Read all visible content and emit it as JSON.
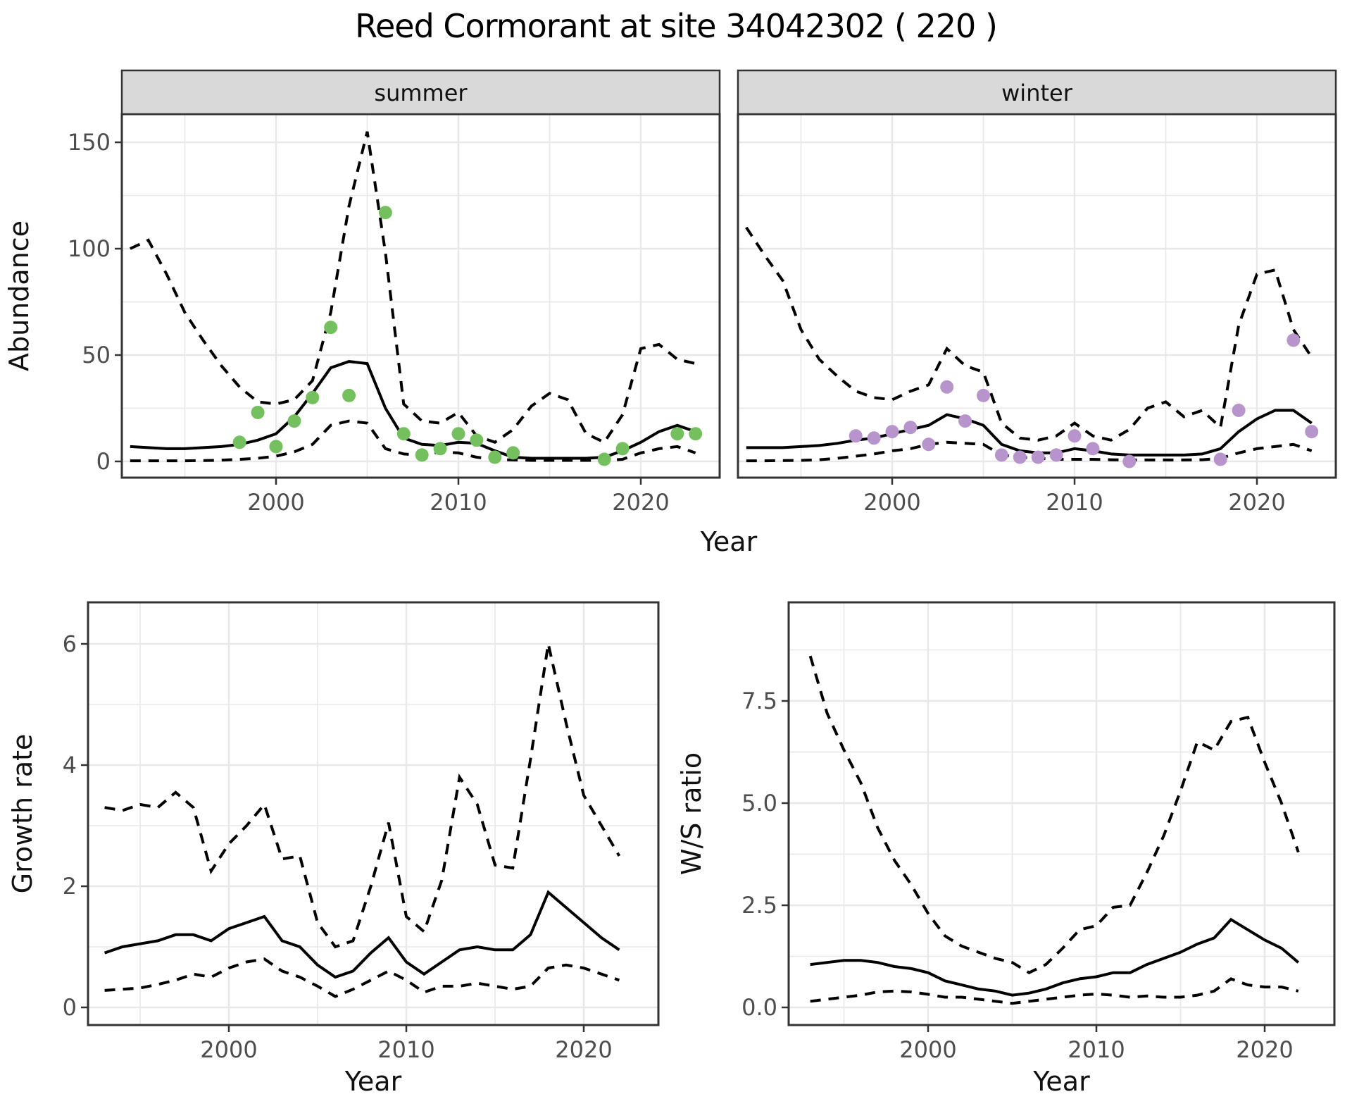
{
  "title": "Reed Cormorant at site 34042302 ( 220 )",
  "colors": {
    "summer_points": "#74c05e",
    "winter_points": "#b894cc",
    "grid": "#e8e8e8",
    "panel_border": "#333333",
    "strip_bg": "#d9d9d9",
    "axis_text": "#4d4d4d",
    "label_text": "#111111",
    "line": "#000000",
    "panel_bg": "#ffffff"
  },
  "chart_data": {
    "type": "line",
    "title": "Reed Cormorant at site 34042302 ( 220 )",
    "grid": "on",
    "legend": "none",
    "panels": [
      {
        "id": "abundance-summer",
        "facet": "summer",
        "xlabel": "Year",
        "ylabel": "Abundance",
        "xlim": [
          1991.5,
          2024.3
        ],
        "ylim": [
          -8,
          163
        ],
        "xticks": [
          2000,
          2010,
          2020
        ],
        "xticklabels": [
          "2000",
          "2010",
          "2020"
        ],
        "yticks": [
          0,
          50,
          100,
          150
        ],
        "yticklabels": [
          "0",
          "50",
          "100",
          "150"
        ],
        "x": [
          1992,
          1993,
          1994,
          1995,
          1996,
          1997,
          1998,
          1999,
          2000,
          2001,
          2002,
          2003,
          2004,
          2005,
          2006,
          2007,
          2008,
          2009,
          2010,
          2011,
          2012,
          2013,
          2014,
          2015,
          2016,
          2017,
          2018,
          2019,
          2020,
          2021,
          2022,
          2023
        ],
        "series": [
          {
            "name": "upper-ci",
            "style": "dashed",
            "values": [
              100,
              104,
              88,
              70,
              57,
              45,
              35,
              28,
              27,
              29,
              38,
              70,
              120,
              155,
              98,
              27,
              19,
              18,
              23,
              12,
              9,
              15,
              26,
              32,
              29,
              13,
              9,
              22,
              53,
              55,
              48,
              46
            ]
          },
          {
            "name": "mean-fit",
            "style": "solid",
            "values": [
              7,
              6.5,
              6,
              6,
              6.5,
              7,
              8,
              10,
              13,
              21,
              32,
              44,
              47,
              46,
              25,
              11,
              8,
              7.5,
              9,
              8.5,
              5,
              2,
              1.5,
              1.5,
              1.5,
              1.5,
              2,
              5,
              9,
              14,
              17,
              14
            ]
          },
          {
            "name": "lower-ci",
            "style": "dashed",
            "values": [
              0.3,
              0.3,
              0.3,
              0.3,
              0.4,
              0.6,
              1,
              1.5,
              2.5,
              4.5,
              8,
              17,
              19,
              18,
              6,
              3.5,
              3,
              4.5,
              4,
              2,
              1,
              0.7,
              0.5,
              0.5,
              0.5,
              0.5,
              0.5,
              1,
              4,
              6,
              7,
              4
            ]
          }
        ],
        "observations": {
          "name": "summer-counts",
          "color": "#74c05e",
          "x": [
            1998,
            1999,
            2000,
            2001,
            2002,
            2003,
            2004,
            2006,
            2007,
            2008,
            2009,
            2010,
            2011,
            2012,
            2013,
            2018,
            2019,
            2022,
            2023
          ],
          "y": [
            9,
            23,
            7,
            19,
            30,
            63,
            31,
            117,
            13,
            3,
            6,
            13,
            10,
            2,
            4,
            1,
            6,
            13,
            13
          ]
        }
      },
      {
        "id": "abundance-winter",
        "facet": "winter",
        "xlabel": "Year",
        "ylabel": "Abundance",
        "xlim": [
          1991.5,
          2024.3
        ],
        "ylim": [
          -8,
          163
        ],
        "xticks": [
          2000,
          2010,
          2020
        ],
        "xticklabels": [
          "2000",
          "2010",
          "2020"
        ],
        "yticks": [
          0,
          50,
          100,
          150
        ],
        "yticklabels": [
          "0",
          "50",
          "100",
          "150"
        ],
        "x": [
          1992,
          1993,
          1994,
          1995,
          1996,
          1997,
          1998,
          1999,
          2000,
          2001,
          2002,
          2003,
          2004,
          2005,
          2006,
          2007,
          2008,
          2009,
          2010,
          2011,
          2012,
          2013,
          2014,
          2015,
          2016,
          2017,
          2018,
          2019,
          2020,
          2021,
          2022,
          2023
        ],
        "series": [
          {
            "name": "upper-ci",
            "style": "dashed",
            "values": [
              110,
              97,
              85,
              62,
              48,
              40,
              33,
              30,
              29,
              33,
              36,
              53,
              45,
              42,
              18,
              11,
              10,
              12,
              18,
              12,
              10,
              15,
              25,
              28,
              21,
              24,
              16,
              64,
              88,
              90,
              62,
              49
            ]
          },
          {
            "name": "mean-fit",
            "style": "solid",
            "values": [
              6.5,
              6.5,
              6.5,
              7,
              7.5,
              8.5,
              10,
              11,
              13,
              15,
              17,
              22,
              20,
              17,
              8,
              5,
              4,
              4,
              6,
              5,
              3.5,
              3,
              3,
              3,
              3,
              3.5,
              6,
              14,
              20,
              24,
              24,
              18
            ]
          },
          {
            "name": "lower-ci",
            "style": "dashed",
            "values": [
              0.3,
              0.3,
              0.4,
              0.5,
              0.8,
              1.5,
              2.5,
              3.5,
              5,
              6,
              8,
              9,
              8.5,
              8,
              3,
              2,
              1.5,
              1,
              1,
              1,
              0.8,
              0.7,
              0.7,
              0.7,
              0.7,
              0.8,
              1.5,
              4,
              6,
              7,
              8,
              5
            ]
          }
        ],
        "observations": {
          "name": "winter-counts",
          "color": "#b894cc",
          "x": [
            1998,
            1999,
            2000,
            2001,
            2002,
            2003,
            2004,
            2005,
            2006,
            2007,
            2008,
            2009,
            2010,
            2011,
            2013,
            2018,
            2019,
            2022,
            2023
          ],
          "y": [
            12,
            11,
            14,
            16,
            8,
            35,
            19,
            31,
            3,
            2,
            2,
            3,
            12,
            6,
            0,
            1,
            24,
            57,
            14
          ]
        }
      },
      {
        "id": "growth-rate",
        "facet": null,
        "xlabel": "Year",
        "ylabel": "Growth rate",
        "xlim": [
          1992,
          2024.2
        ],
        "ylim": [
          -0.3,
          6.7
        ],
        "xticks": [
          2000,
          2010,
          2020
        ],
        "xticklabels": [
          "2000",
          "2010",
          "2020"
        ],
        "yticks": [
          0,
          2,
          4,
          6
        ],
        "yticklabels": [
          "0",
          "2",
          "4",
          "6"
        ],
        "x": [
          1993,
          1994,
          1995,
          1996,
          1997,
          1998,
          1999,
          2000,
          2001,
          2002,
          2003,
          2004,
          2005,
          2006,
          2007,
          2008,
          2009,
          2010,
          2011,
          2012,
          2013,
          2014,
          2015,
          2016,
          2017,
          2018,
          2019,
          2020,
          2021,
          2022
        ],
        "series": [
          {
            "name": "upper-ci",
            "style": "dashed",
            "values": [
              3.3,
              3.25,
              3.35,
              3.3,
              3.55,
              3.3,
              2.25,
              2.7,
              3.0,
              3.35,
              2.45,
              2.5,
              1.4,
              1.0,
              1.1,
              2.0,
              3.05,
              1.5,
              1.25,
              2.1,
              3.8,
              3.35,
              2.35,
              2.3,
              4.1,
              6.0,
              4.7,
              3.5,
              3.0,
              2.5
            ]
          },
          {
            "name": "mean-fit",
            "style": "solid",
            "values": [
              0.9,
              1.0,
              1.05,
              1.1,
              1.2,
              1.2,
              1.1,
              1.3,
              1.4,
              1.5,
              1.1,
              1.0,
              0.7,
              0.5,
              0.6,
              0.9,
              1.15,
              0.75,
              0.55,
              0.75,
              0.95,
              1.0,
              0.95,
              0.95,
              1.2,
              1.9,
              1.65,
              1.4,
              1.15,
              0.95
            ]
          },
          {
            "name": "lower-ci",
            "style": "dashed",
            "values": [
              0.28,
              0.3,
              0.32,
              0.38,
              0.45,
              0.55,
              0.5,
              0.65,
              0.75,
              0.8,
              0.6,
              0.5,
              0.35,
              0.18,
              0.3,
              0.45,
              0.6,
              0.45,
              0.25,
              0.35,
              0.35,
              0.4,
              0.35,
              0.3,
              0.35,
              0.65,
              0.7,
              0.65,
              0.55,
              0.45
            ]
          }
        ],
        "observations": null
      },
      {
        "id": "ws-ratio",
        "facet": null,
        "xlabel": "Year",
        "ylabel": "W/S ratio",
        "xlim": [
          1991.7,
          2024.1
        ],
        "ylim": [
          -0.45,
          9.9
        ],
        "xticks": [
          2000,
          2010,
          2020
        ],
        "xticklabels": [
          "2000",
          "2010",
          "2020"
        ],
        "yticks": [
          0,
          2.5,
          5,
          7.5
        ],
        "yticklabels": [
          "0.0",
          "2.5",
          "5.0",
          "7.5"
        ],
        "x": [
          1993,
          1994,
          1995,
          1996,
          1997,
          1998,
          1999,
          2000,
          2001,
          2002,
          2003,
          2004,
          2005,
          2006,
          2007,
          2008,
          2009,
          2010,
          2011,
          2012,
          2013,
          2014,
          2015,
          2016,
          2017,
          2018,
          2019,
          2020,
          2021,
          2022
        ],
        "series": [
          {
            "name": "upper-ci",
            "style": "dashed",
            "values": [
              8.6,
              7.2,
              6.3,
              5.5,
              4.4,
              3.6,
              3.0,
              2.3,
              1.75,
              1.5,
              1.35,
              1.2,
              1.1,
              0.85,
              1.05,
              1.45,
              1.9,
              2.0,
              2.45,
              2.5,
              3.3,
              4.2,
              5.3,
              6.5,
              6.3,
              7.0,
              7.1,
              6.0,
              5.0,
              3.8
            ]
          },
          {
            "name": "mean-fit",
            "style": "solid",
            "values": [
              1.05,
              1.1,
              1.15,
              1.15,
              1.1,
              1.0,
              0.95,
              0.85,
              0.65,
              0.55,
              0.45,
              0.4,
              0.3,
              0.35,
              0.45,
              0.6,
              0.7,
              0.75,
              0.85,
              0.85,
              1.05,
              1.2,
              1.35,
              1.55,
              1.7,
              2.15,
              1.9,
              1.65,
              1.45,
              1.1
            ]
          },
          {
            "name": "lower-ci",
            "style": "dashed",
            "values": [
              0.15,
              0.2,
              0.25,
              0.3,
              0.38,
              0.4,
              0.38,
              0.32,
              0.25,
              0.25,
              0.2,
              0.15,
              0.1,
              0.15,
              0.2,
              0.25,
              0.3,
              0.33,
              0.3,
              0.25,
              0.28,
              0.25,
              0.25,
              0.3,
              0.4,
              0.7,
              0.55,
              0.5,
              0.5,
              0.4
            ]
          }
        ],
        "observations": null
      }
    ]
  }
}
